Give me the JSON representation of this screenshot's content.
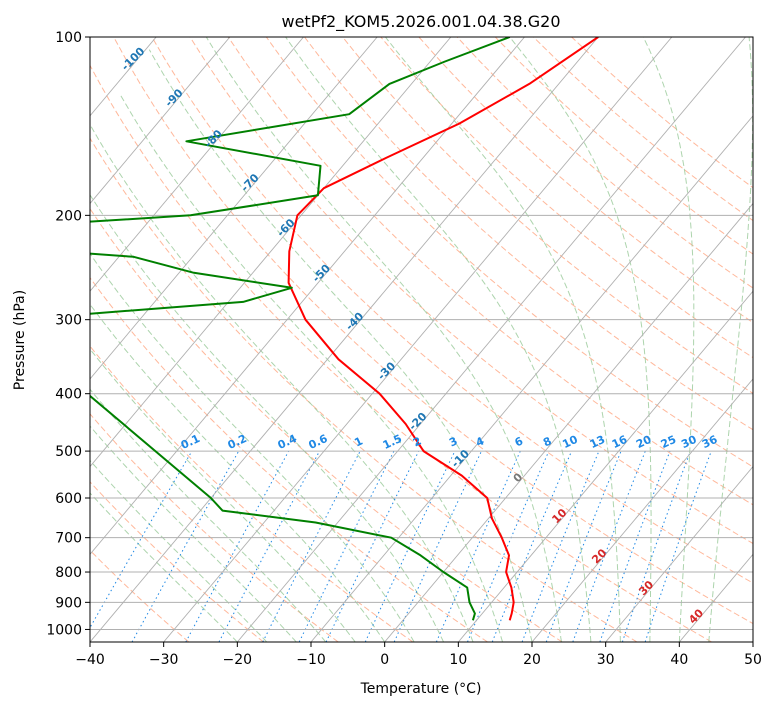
{
  "chart_data": {
    "type": "line",
    "subtype": "skew-t log-p diagram",
    "title": "wetPf2_KOM5.2026.001.04.38.G20",
    "xlabel": "Temperature (°C)",
    "ylabel": "Pressure (hPa)",
    "xlim": [
      -40,
      50
    ],
    "ylim": [
      1050,
      100
    ],
    "y_scale": "log",
    "x_ticks": [
      "−40",
      "−30",
      "−20",
      "−10",
      "0",
      "10",
      "20",
      "30",
      "40",
      "50"
    ],
    "y_ticks": [
      "100",
      "200",
      "300",
      "400",
      "500",
      "600",
      "700",
      "800",
      "900",
      "1000"
    ],
    "grid": true,
    "series": [
      {
        "key": "temperature",
        "color": "#ff0000",
        "points": [
          [
            100,
            -40.0
          ],
          [
            120,
            -44.0
          ],
          [
            140,
            -49.0
          ],
          [
            160,
            -55.0
          ],
          [
            180,
            -60.0
          ],
          [
            200,
            -60.5
          ],
          [
            230,
            -57.5
          ],
          [
            260,
            -54.0
          ],
          [
            300,
            -47.5
          ],
          [
            350,
            -38.5
          ],
          [
            400,
            -29.0
          ],
          [
            450,
            -22.0
          ],
          [
            500,
            -16.5
          ],
          [
            550,
            -8.5
          ],
          [
            600,
            -2.5
          ],
          [
            650,
            0.5
          ],
          [
            700,
            4.0
          ],
          [
            750,
            7.0
          ],
          [
            800,
            8.5
          ],
          [
            850,
            11.0
          ],
          [
            900,
            13.0
          ],
          [
            940,
            14.0
          ],
          [
            965,
            14.5
          ]
        ]
      },
      {
        "key": "dewpoint",
        "color": "#008000",
        "points": [
          [
            100,
            -52.0
          ],
          [
            110,
            -58.0
          ],
          [
            120,
            -63.0
          ],
          [
            135,
            -65.0
          ],
          [
            150,
            -84.0
          ],
          [
            165,
            -63.0
          ],
          [
            185,
            -60.0
          ],
          [
            200,
            -75.0
          ],
          [
            205,
            -88.0
          ],
          [
            230,
            -89.0
          ],
          [
            235,
            -78.0
          ],
          [
            250,
            -68.0
          ],
          [
            265,
            -53.0
          ],
          [
            280,
            -58.0
          ],
          [
            295,
            -80.0
          ],
          [
            300,
            -89.0
          ],
          [
            600,
            -40.0
          ],
          [
            630,
            -37.0
          ],
          [
            660,
            -23.0
          ],
          [
            700,
            -11.0
          ],
          [
            750,
            -5.0
          ],
          [
            800,
            0.0
          ],
          [
            850,
            5.0
          ],
          [
            900,
            7.0
          ],
          [
            940,
            9.0
          ],
          [
            965,
            9.5
          ]
        ]
      }
    ],
    "isotherm_labels": [
      "-100",
      "-90",
      "-80",
      "-70",
      "-60",
      "-50",
      "-40",
      "-30",
      "-20",
      "-10"
    ],
    "mixing_ratio_labels": [
      "0.1",
      "0.2",
      "0.4",
      "0.6",
      "1",
      "1.5",
      "2",
      "3",
      "4",
      "6",
      "8",
      "10",
      "13",
      "16",
      "20",
      "25",
      "30",
      "36"
    ],
    "zero_isotherm_label": "0",
    "warm_isotherm_labels": [
      "10",
      "20",
      "30",
      "40"
    ],
    "colors": {
      "temperature": "#ff0000",
      "dewpoint": "#008000",
      "isotherm_label": "#1f77b4",
      "mixing_ratio": "#1e88e5",
      "warm_label": "#d62728",
      "dry_adiabat": "#ffa07a",
      "moist_adiabat": "#98c998",
      "grid": "#b0b0b0"
    }
  }
}
